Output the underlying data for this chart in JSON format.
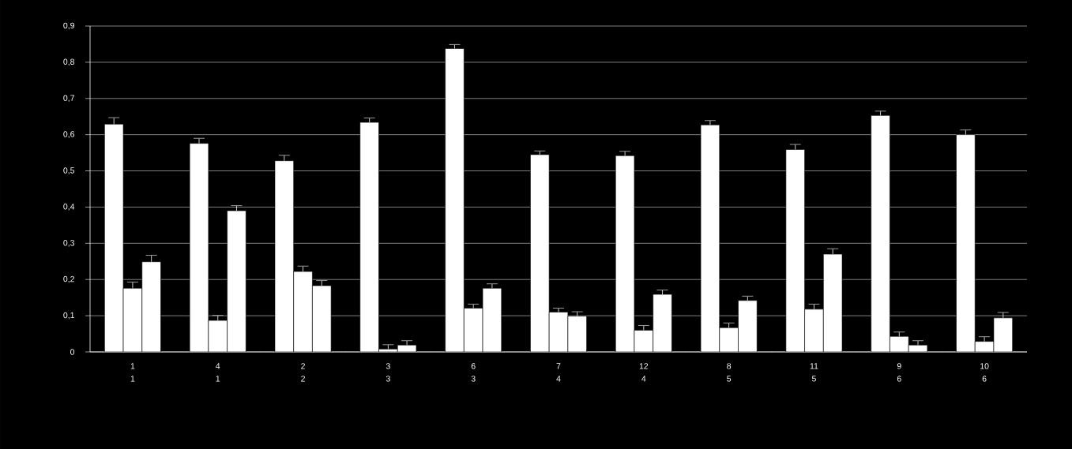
{
  "chart_data": {
    "type": "bar",
    "categories": [
      "1 1",
      "4 1",
      "2 2",
      "3 3",
      "6 3",
      "7 4",
      "12 4",
      "8 5",
      "11 5",
      "9 6",
      "10 6"
    ],
    "series": [
      {
        "color": "#ffffff",
        "values": [
          0.629,
          0.576,
          0.528,
          0.634,
          0.838,
          0.545,
          0.542,
          0.627,
          0.559,
          0.653,
          0.6
        ],
        "errors": [
          0.018,
          0.014,
          0.015,
          0.012,
          0.011,
          0.01,
          0.012,
          0.012,
          0.014,
          0.012,
          0.013
        ]
      },
      {
        "color": "#ffffff",
        "values": [
          0.176,
          0.087,
          0.222,
          0.008,
          0.121,
          0.11,
          0.06,
          0.067,
          0.118,
          0.043,
          0.029
        ],
        "errors": [
          0.017,
          0.014,
          0.015,
          0.012,
          0.011,
          0.011,
          0.013,
          0.013,
          0.014,
          0.012,
          0.013
        ]
      },
      {
        "color": "#ffffff",
        "values": [
          0.249,
          0.39,
          0.183,
          0.019,
          0.176,
          0.099,
          0.159,
          0.142,
          0.27,
          0.019,
          0.094
        ],
        "errors": [
          0.018,
          0.014,
          0.014,
          0.012,
          0.012,
          0.012,
          0.012,
          0.012,
          0.015,
          0.012,
          0.015
        ]
      }
    ],
    "ylim": [
      0,
      0.9
    ],
    "yticks": [
      {
        "value": 0,
        "label": "0"
      },
      {
        "value": 0.1,
        "label": "0,1"
      },
      {
        "value": 0.2,
        "label": "0,2"
      },
      {
        "value": 0.3,
        "label": "0,3"
      },
      {
        "value": 0.4,
        "label": "0,4"
      },
      {
        "value": 0.5,
        "label": "0,5"
      },
      {
        "value": 0.6,
        "label": "0,6"
      },
      {
        "value": 0.7,
        "label": "0,7"
      },
      {
        "value": 0.8,
        "label": "0,8"
      },
      {
        "value": 0.9,
        "label": "0,9"
      }
    ],
    "grid": "y"
  }
}
